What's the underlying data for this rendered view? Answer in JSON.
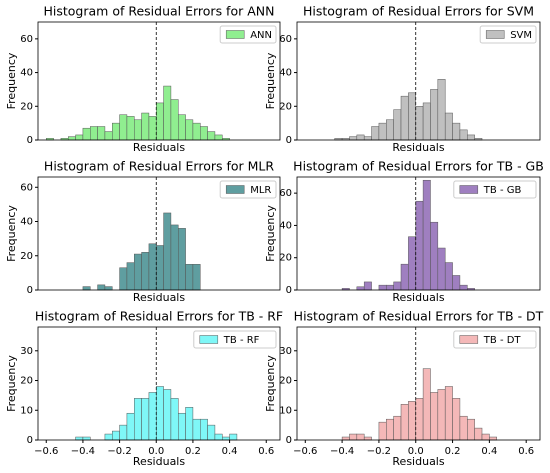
{
  "chart_data": [
    {
      "type": "histogram",
      "title": "Histogram of Residual Errors for ANN",
      "xlabel": "Residuals",
      "ylabel": "Frequency",
      "legend": "upper right",
      "vline": 0,
      "series": [
        {
          "name": "ANN",
          "color": "#90ee90",
          "values": [
            1,
            0,
            1,
            2,
            3,
            7,
            8,
            8,
            5,
            10,
            15,
            14,
            12,
            16,
            14,
            22,
            32,
            24,
            15,
            12,
            10,
            8,
            5,
            3,
            1,
            0
          ]
        }
      ],
      "bins": [
        -0.6,
        -0.56,
        -0.52,
        -0.48,
        -0.44,
        -0.4,
        -0.36,
        -0.32,
        -0.28,
        -0.24,
        -0.2,
        -0.16,
        -0.12,
        -0.08,
        -0.04,
        0,
        0.04,
        0.08,
        0.12,
        0.16,
        0.2,
        0.24,
        0.28,
        0.32,
        0.36,
        0.4,
        0.44
      ],
      "xlim": [
        -0.645,
        0.675
      ],
      "ylim": [
        0,
        70
      ],
      "yticks": [
        0,
        20,
        40,
        60
      ]
    },
    {
      "type": "histogram",
      "title": "Histogram of Residual Errors for SVM",
      "xlabel": "Residuals",
      "ylabel": "Frequency",
      "legend": "upper right",
      "vline": 0,
      "series": [
        {
          "name": "SVM",
          "color": "#c0c0c0",
          "values": [
            0,
            0,
            0,
            0,
            1,
            1,
            2,
            3,
            2,
            8,
            10,
            12,
            18,
            26,
            28,
            20,
            22,
            30,
            36,
            16,
            10,
            6,
            3,
            1,
            0,
            0
          ]
        }
      ],
      "bins": [
        -0.6,
        -0.56,
        -0.52,
        -0.48,
        -0.44,
        -0.4,
        -0.36,
        -0.32,
        -0.28,
        -0.24,
        -0.2,
        -0.16,
        -0.12,
        -0.08,
        -0.04,
        0,
        0.04,
        0.08,
        0.12,
        0.16,
        0.2,
        0.24,
        0.28,
        0.32,
        0.36,
        0.4,
        0.44
      ],
      "xlim": [
        -0.645,
        0.675
      ],
      "ylim": [
        0,
        70
      ],
      "yticks": [
        0,
        20,
        40,
        60
      ]
    },
    {
      "type": "histogram",
      "title": "Histogram of Residual Errors for MLR",
      "xlabel": "Residuals",
      "ylabel": "Frequency",
      "legend": "upper right",
      "vline": 0,
      "series": [
        {
          "name": "MLR",
          "color": "#5f9ea0",
          "values": [
            0,
            0,
            0,
            0,
            0,
            2,
            0,
            3,
            2,
            0,
            13,
            16,
            21,
            22,
            27,
            26,
            45,
            38,
            36,
            15,
            15,
            0,
            0,
            0,
            0,
            0
          ]
        }
      ],
      "bins": [
        -0.6,
        -0.56,
        -0.52,
        -0.48,
        -0.44,
        -0.4,
        -0.36,
        -0.32,
        -0.28,
        -0.24,
        -0.2,
        -0.16,
        -0.12,
        -0.08,
        -0.04,
        0,
        0.04,
        0.08,
        0.12,
        0.16,
        0.2,
        0.24,
        0.28,
        0.32,
        0.36,
        0.4,
        0.44
      ],
      "xlim": [
        -0.645,
        0.675
      ],
      "ylim": [
        0,
        66
      ],
      "yticks": [
        0,
        20,
        40,
        60
      ]
    },
    {
      "type": "histogram",
      "title": "Histogram of Residual Errors for TB - GB",
      "xlabel": "Residuals",
      "ylabel": "Frequency",
      "legend": "upper right",
      "vline": 0,
      "series": [
        {
          "name": "TB - GB",
          "color": "#9f7fc0",
          "values": [
            0,
            0,
            0,
            0,
            0,
            1,
            0,
            2,
            5,
            0,
            3,
            3,
            5,
            16,
            33,
            55,
            68,
            42,
            26,
            17,
            9,
            3,
            1,
            0,
            0,
            0
          ]
        }
      ],
      "bins": [
        -0.6,
        -0.56,
        -0.52,
        -0.48,
        -0.44,
        -0.4,
        -0.36,
        -0.32,
        -0.28,
        -0.24,
        -0.2,
        -0.16,
        -0.12,
        -0.08,
        -0.04,
        0,
        0.04,
        0.08,
        0.12,
        0.16,
        0.2,
        0.24,
        0.28,
        0.32,
        0.36,
        0.4,
        0.44
      ],
      "xlim": [
        -0.645,
        0.675
      ],
      "ylim": [
        0,
        70
      ],
      "yticks": [
        0,
        20,
        40,
        60
      ]
    },
    {
      "type": "histogram",
      "title": "Histogram of Residual Errors for TB - RF",
      "xlabel": "Residuals",
      "ylabel": "Frequency",
      "legend": "upper right",
      "vline": 0,
      "series": [
        {
          "name": "TB - RF",
          "color": "#7ff7f7",
          "values": [
            0,
            0,
            0,
            0,
            1,
            1,
            0,
            0,
            2,
            3,
            5,
            9,
            14,
            14,
            16,
            18,
            17,
            14,
            9,
            11,
            7,
            7,
            5,
            2,
            1,
            2
          ]
        }
      ],
      "bins": [
        -0.6,
        -0.56,
        -0.52,
        -0.48,
        -0.44,
        -0.4,
        -0.36,
        -0.32,
        -0.28,
        -0.24,
        -0.2,
        -0.16,
        -0.12,
        -0.08,
        -0.04,
        0,
        0.04,
        0.08,
        0.12,
        0.16,
        0.2,
        0.24,
        0.28,
        0.32,
        0.36,
        0.4,
        0.44
      ],
      "xlim": [
        -0.645,
        0.675
      ],
      "ylim": [
        0,
        38
      ],
      "yticks": [
        0,
        10,
        20,
        30
      ],
      "xticks": [
        {
          "value": -0.6,
          "label": "−0.6"
        },
        {
          "value": -0.4,
          "label": "−0.4"
        },
        {
          "value": -0.2,
          "label": "−0.2"
        },
        {
          "value": 0,
          "label": "0.0"
        },
        {
          "value": 0.2,
          "label": "0.2"
        },
        {
          "value": 0.4,
          "label": "0.4"
        },
        {
          "value": 0.6,
          "label": "0.6"
        }
      ]
    },
    {
      "type": "histogram",
      "title": "Histogram of Residual Errors for TB - DT",
      "xlabel": "Residuals",
      "ylabel": "Frequency",
      "legend": "upper right",
      "vline": 0,
      "series": [
        {
          "name": "TB - DT",
          "color": "#f4b8b8",
          "values": [
            0,
            0,
            0,
            0,
            0,
            1,
            2,
            2,
            1,
            0,
            6,
            7,
            8,
            12,
            13,
            14,
            24,
            16,
            17,
            18,
            14,
            8,
            7,
            4,
            2,
            1
          ]
        }
      ],
      "bins": [
        -0.6,
        -0.56,
        -0.52,
        -0.48,
        -0.44,
        -0.4,
        -0.36,
        -0.32,
        -0.28,
        -0.24,
        -0.2,
        -0.16,
        -0.12,
        -0.08,
        -0.04,
        0,
        0.04,
        0.08,
        0.12,
        0.16,
        0.2,
        0.24,
        0.28,
        0.32,
        0.36,
        0.4,
        0.44
      ],
      "xlim": [
        -0.645,
        0.675
      ],
      "ylim": [
        0,
        38
      ],
      "yticks": [
        0,
        10,
        20,
        30
      ],
      "xticks": [
        {
          "value": -0.6,
          "label": "−0.6"
        },
        {
          "value": -0.4,
          "label": "−0.4"
        },
        {
          "value": -0.2,
          "label": "−0.2"
        },
        {
          "value": 0,
          "label": "0.0"
        },
        {
          "value": 0.2,
          "label": "0.2"
        },
        {
          "value": 0.4,
          "label": "0.4"
        },
        {
          "value": 0.6,
          "label": "0.6"
        }
      ]
    }
  ]
}
